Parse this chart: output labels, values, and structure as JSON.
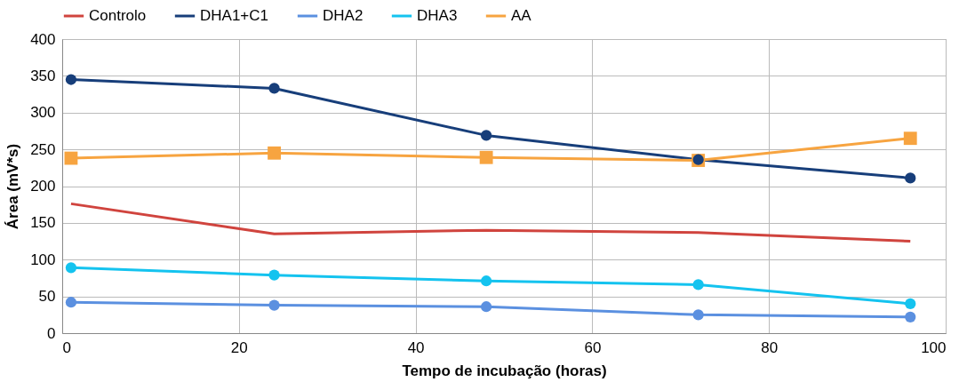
{
  "chart_data": {
    "type": "line",
    "xlabel": "Tempo de incubação (horas)",
    "ylabel": "Área (mV*s)",
    "x": [
      1,
      24,
      48,
      72,
      96
    ],
    "series": [
      {
        "name": "Controlo",
        "color": "#d0443e",
        "marker": "none",
        "values": [
          176,
          135,
          140,
          137,
          125
        ]
      },
      {
        "name": "DHA1+C1",
        "color": "#173e7a",
        "marker": "circle",
        "values": [
          345,
          333,
          269,
          236,
          211
        ]
      },
      {
        "name": "DHA2",
        "color": "#5b90e0",
        "marker": "circle",
        "values": [
          42,
          38,
          36,
          25,
          22
        ]
      },
      {
        "name": "DHA3",
        "color": "#14c3ef",
        "marker": "circle",
        "values": [
          89,
          79,
          71,
          66,
          40
        ]
      },
      {
        "name": "AA",
        "color": "#f7a440",
        "marker": "square",
        "values": [
          238,
          245,
          239,
          235,
          265
        ]
      }
    ],
    "xlim": [
      0,
      100
    ],
    "xticks": [
      0,
      20,
      40,
      60,
      80,
      100
    ],
    "ylim": [
      0,
      400
    ],
    "yticks": [
      0,
      50,
      100,
      150,
      200,
      250,
      300,
      350,
      400
    ],
    "grid": true,
    "legend": "top"
  }
}
